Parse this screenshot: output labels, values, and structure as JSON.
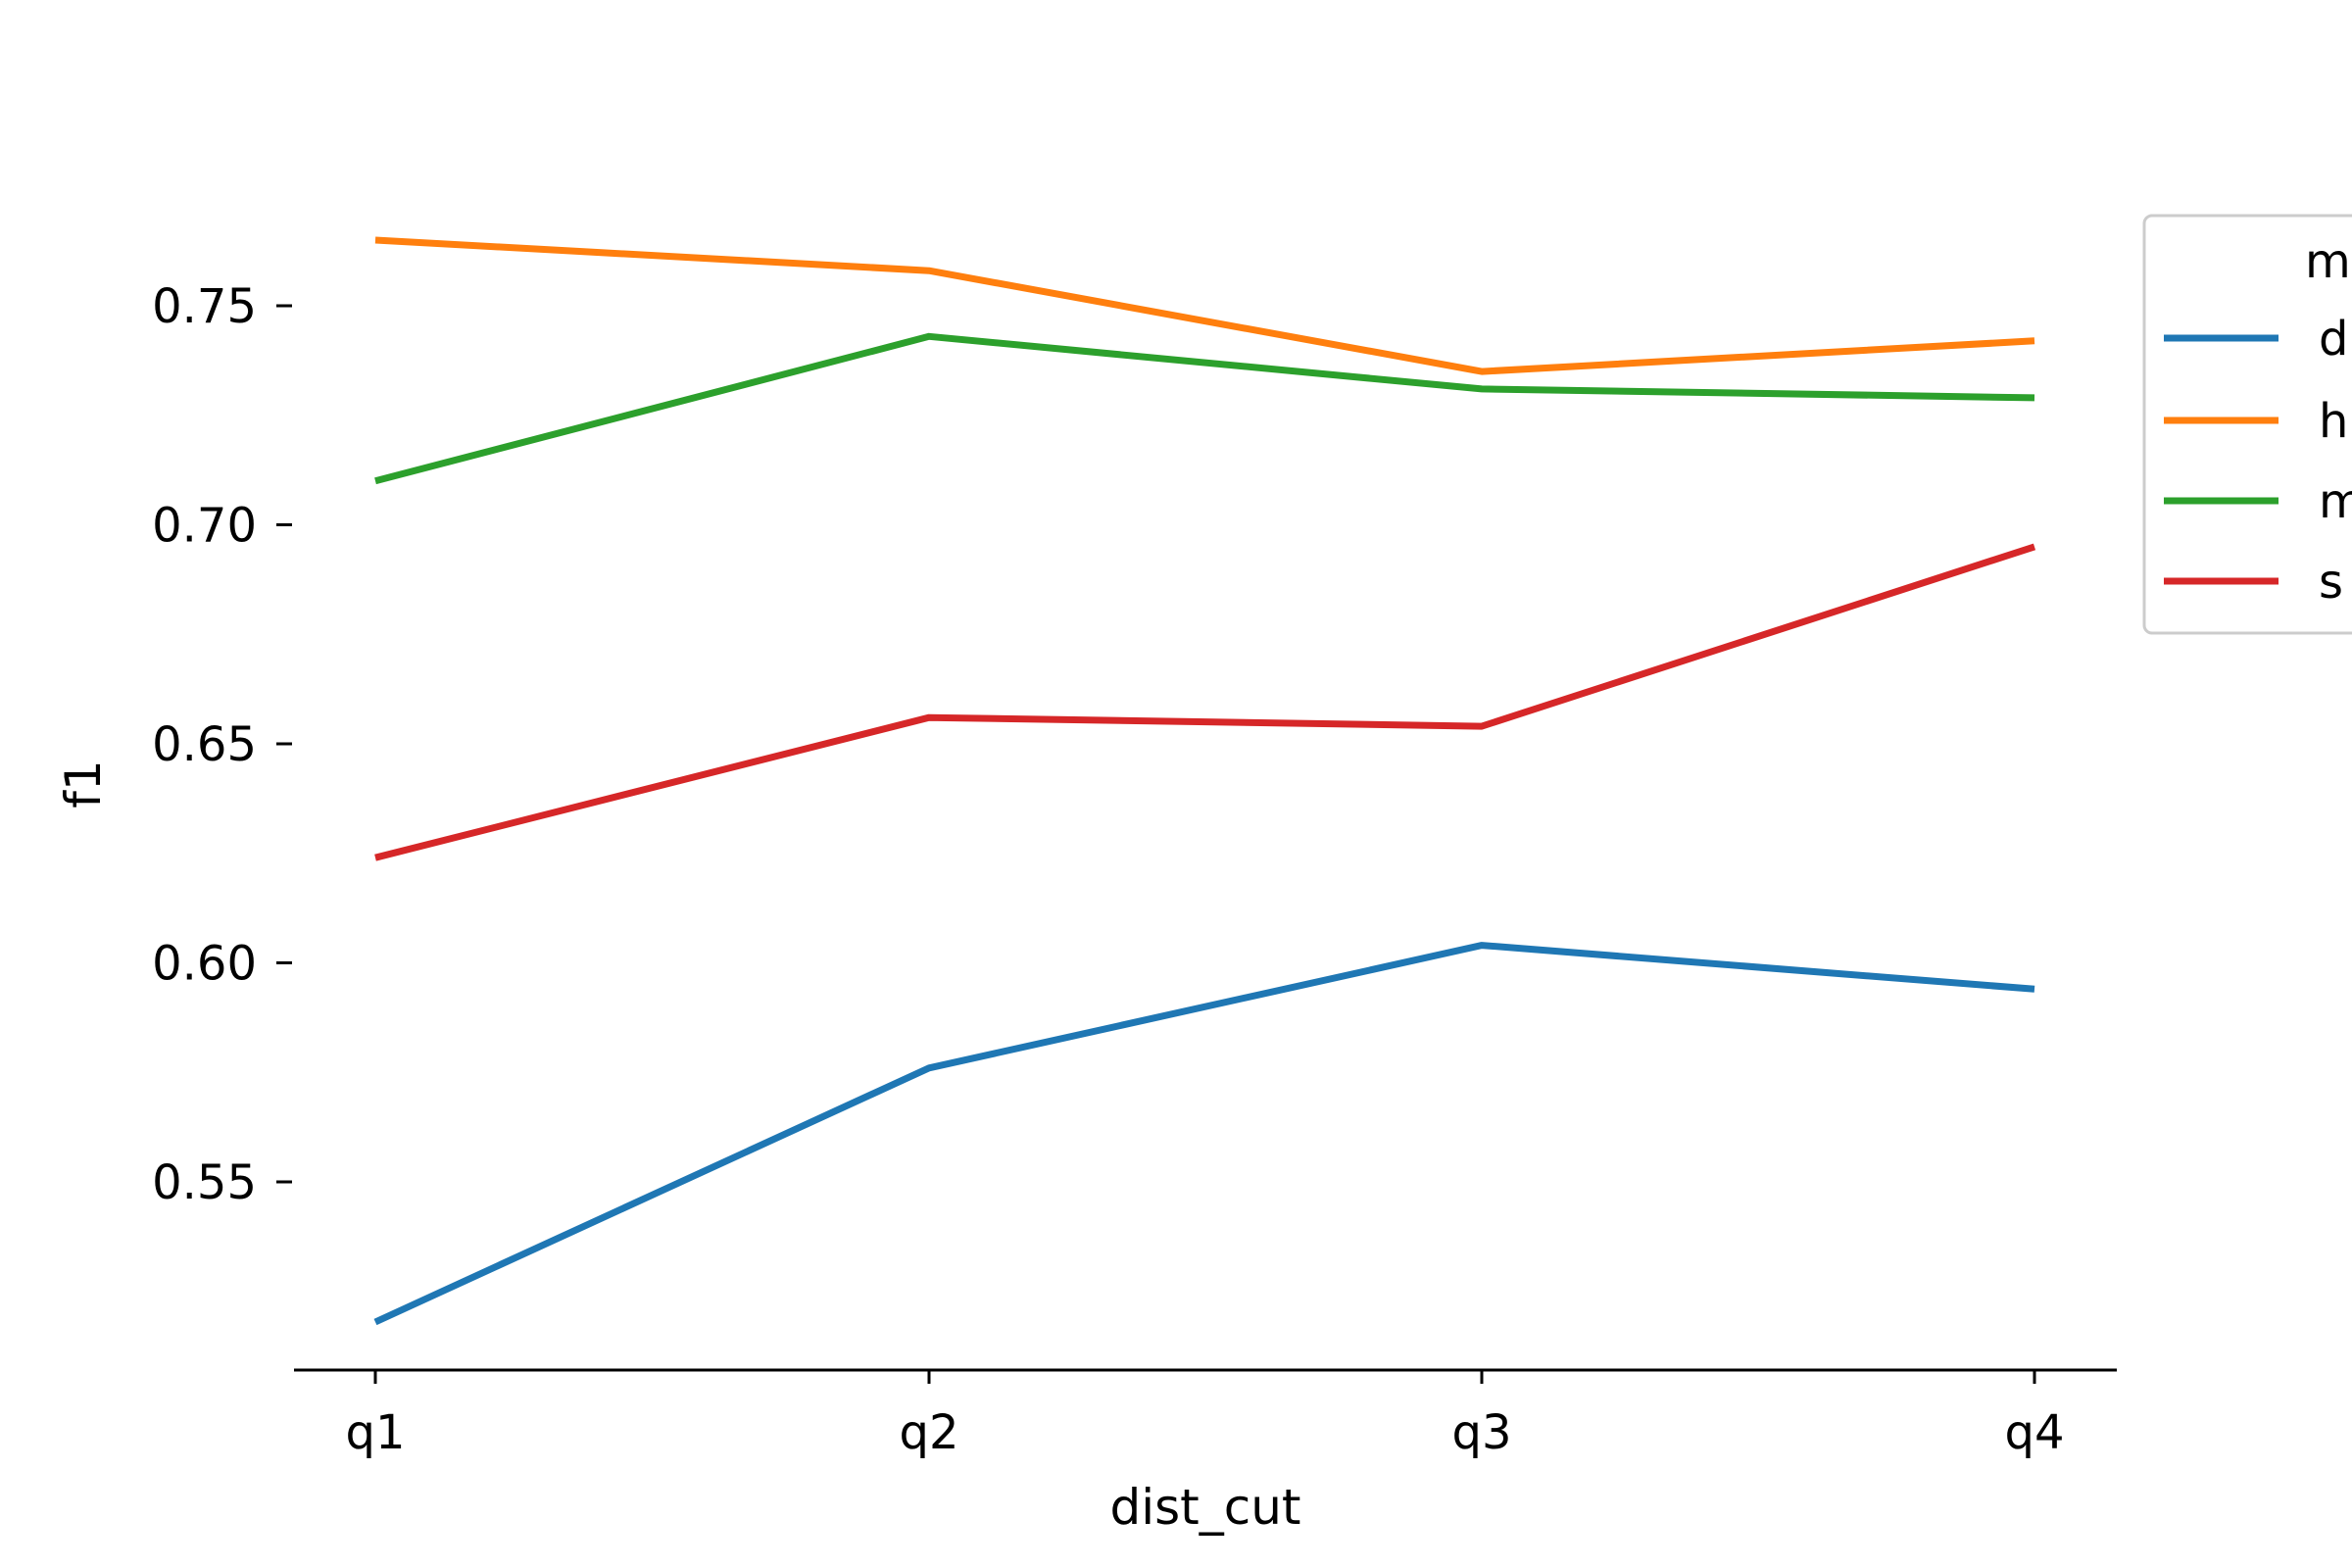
{
  "chart_data": {
    "type": "line",
    "categories": [
      "q1",
      "q2",
      "q3",
      "q4"
    ],
    "xlabel": "dist_cut",
    "ylabel": "f1",
    "ylim": [
      0.508,
      0.78
    ],
    "yticks": [
      "0.55",
      "0.60",
      "0.65",
      "0.70",
      "0.75"
    ],
    "grid": false,
    "legend": {
      "placement": "right, partially cropped",
      "title_visible": "m",
      "entries_visible": [
        "d",
        "h",
        "m",
        "s"
      ]
    },
    "series": [
      {
        "legend_label": "d",
        "color": "#1f77b4",
        "values": [
          0.518,
          0.576,
          0.604,
          0.594
        ]
      },
      {
        "legend_label": "h",
        "color": "#ff7f0e",
        "values": [
          0.765,
          0.758,
          0.735,
          0.742
        ]
      },
      {
        "legend_label": "m",
        "color": "#2ca02c",
        "values": [
          0.71,
          0.743,
          0.731,
          0.729
        ]
      },
      {
        "legend_label": "s",
        "color": "#d62728",
        "values": [
          0.624,
          0.656,
          0.654,
          0.695
        ]
      }
    ]
  }
}
